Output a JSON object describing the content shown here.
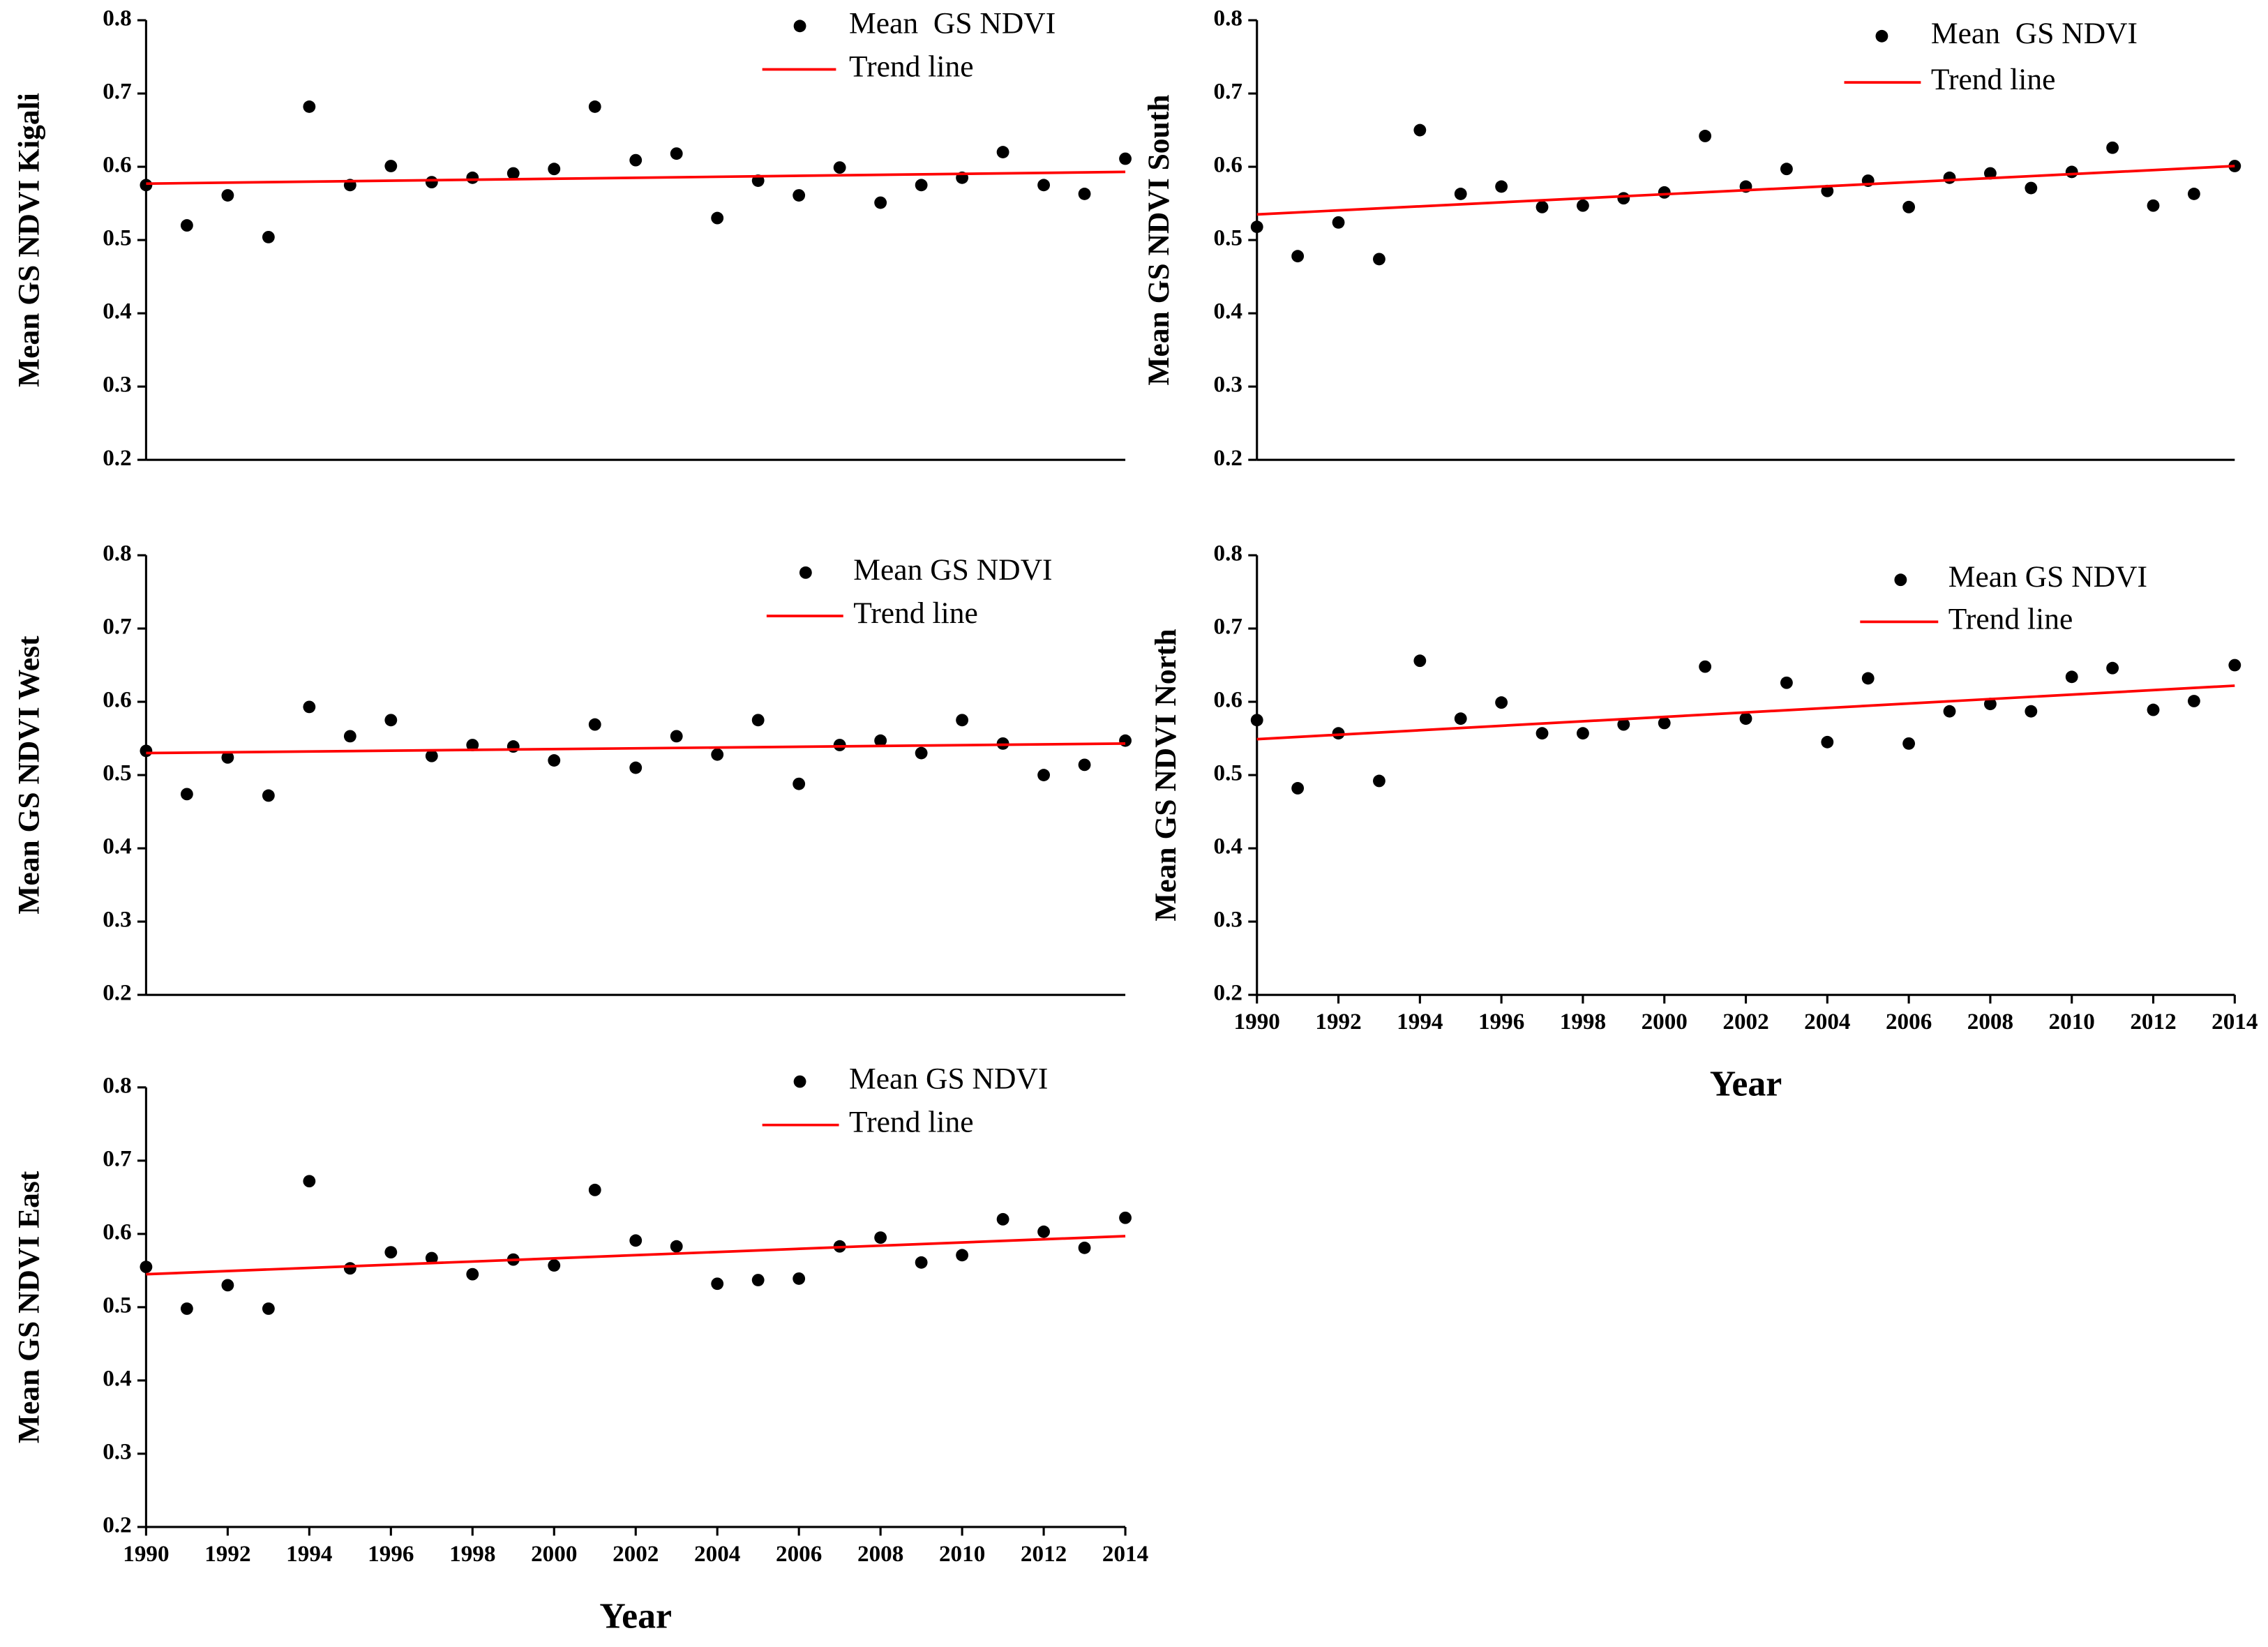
{
  "chart_data": [
    {
      "type": "scatter",
      "ylabel": "Mean GS NDVI Kigali",
      "xlim": [
        1990,
        2014
      ],
      "ylim": [
        0.2,
        0.8
      ],
      "yticks": [
        0.2,
        0.3,
        0.4,
        0.5,
        0.6,
        0.7,
        0.8
      ],
      "series": [
        {
          "name": "Mean  GS NDVI",
          "color": "#000000",
          "kind": "markers",
          "x": [
            1990,
            1991,
            1992,
            1993,
            1994,
            1995,
            1996,
            1997,
            1998,
            1999,
            2000,
            2001,
            2002,
            2003,
            2004,
            2005,
            2006,
            2007,
            2008,
            2009,
            2010,
            2011,
            2012,
            2013,
            2014
          ],
          "values": [
            0.575,
            0.52,
            0.561,
            0.504,
            0.682,
            0.575,
            0.601,
            0.579,
            0.585,
            0.591,
            0.597,
            0.682,
            0.609,
            0.618,
            0.53,
            0.581,
            0.561,
            0.599,
            0.551,
            0.575,
            0.585,
            0.62,
            0.575,
            0.563,
            0.611
          ]
        },
        {
          "name": "Trend line",
          "color": "#ff0000",
          "kind": "line",
          "x": [
            1990,
            2014
          ],
          "values": [
            0.577,
            0.593
          ]
        }
      ]
    },
    {
      "type": "scatter",
      "ylabel": "Mean GS NDVI South",
      "xlim": [
        1990,
        2014
      ],
      "ylim": [
        0.2,
        0.8
      ],
      "yticks": [
        0.2,
        0.3,
        0.4,
        0.5,
        0.6,
        0.7,
        0.8
      ],
      "series": [
        {
          "name": "Mean  GS NDVI",
          "color": "#000000",
          "kind": "markers",
          "x": [
            1990,
            1991,
            1992,
            1993,
            1994,
            1995,
            1996,
            1997,
            1998,
            1999,
            2000,
            2001,
            2002,
            2003,
            2004,
            2005,
            2006,
            2007,
            2008,
            2009,
            2010,
            2011,
            2012,
            2013,
            2014
          ],
          "values": [
            0.518,
            0.478,
            0.524,
            0.474,
            0.65,
            0.563,
            0.573,
            0.545,
            0.547,
            0.557,
            0.565,
            0.642,
            0.573,
            0.597,
            0.567,
            0.581,
            0.545,
            0.585,
            0.591,
            0.571,
            0.593,
            0.626,
            0.547,
            0.563,
            0.601
          ]
        },
        {
          "name": "Trend line",
          "color": "#ff0000",
          "kind": "line",
          "x": [
            1990,
            2014
          ],
          "values": [
            0.535,
            0.601
          ]
        }
      ]
    },
    {
      "type": "scatter",
      "ylabel": "Mean GS NDVI West",
      "xlim": [
        1990,
        2014
      ],
      "ylim": [
        0.2,
        0.8
      ],
      "yticks": [
        0.2,
        0.3,
        0.4,
        0.5,
        0.6,
        0.7,
        0.8
      ],
      "series": [
        {
          "name": "Mean GS NDVI",
          "color": "#000000",
          "kind": "markers",
          "x": [
            1990,
            1991,
            1992,
            1993,
            1994,
            1995,
            1996,
            1997,
            1998,
            1999,
            2000,
            2001,
            2002,
            2003,
            2004,
            2005,
            2006,
            2007,
            2008,
            2009,
            2010,
            2011,
            2012,
            2013,
            2014
          ],
          "values": [
            0.533,
            0.474,
            0.524,
            0.472,
            0.593,
            0.553,
            0.575,
            0.526,
            0.541,
            0.539,
            0.52,
            0.569,
            0.51,
            0.553,
            0.528,
            0.575,
            0.488,
            0.541,
            0.547,
            0.53,
            0.575,
            0.543,
            0.5,
            0.514,
            0.547
          ]
        },
        {
          "name": "Trend line",
          "color": "#ff0000",
          "kind": "line",
          "x": [
            1990,
            2014
          ],
          "values": [
            0.53,
            0.543
          ]
        }
      ]
    },
    {
      "type": "scatter",
      "ylabel": "Mean GS NDVI North",
      "xlabel": "Year",
      "xlim": [
        1990,
        2014
      ],
      "ylim": [
        0.2,
        0.8
      ],
      "yticks": [
        0.2,
        0.3,
        0.4,
        0.5,
        0.6,
        0.7,
        0.8
      ],
      "xticks": [
        1990,
        1992,
        1994,
        1996,
        1998,
        2000,
        2002,
        2004,
        2006,
        2008,
        2010,
        2012,
        2014
      ],
      "series": [
        {
          "name": "Mean GS NDVI",
          "color": "#000000",
          "kind": "markers",
          "x": [
            1990,
            1991,
            1992,
            1993,
            1994,
            1995,
            1996,
            1997,
            1998,
            1999,
            2000,
            2001,
            2002,
            2003,
            2004,
            2005,
            2006,
            2007,
            2008,
            2009,
            2010,
            2011,
            2012,
            2013,
            2014
          ],
          "values": [
            0.575,
            0.482,
            0.557,
            0.492,
            0.656,
            0.577,
            0.599,
            0.557,
            0.557,
            0.569,
            0.571,
            0.648,
            0.577,
            0.626,
            0.545,
            0.632,
            0.543,
            0.587,
            0.597,
            0.587,
            0.634,
            0.646,
            0.589,
            0.601,
            0.65
          ]
        },
        {
          "name": "Trend line",
          "color": "#ff0000",
          "kind": "line",
          "x": [
            1990,
            2014
          ],
          "values": [
            0.549,
            0.622
          ]
        }
      ]
    },
    {
      "type": "scatter",
      "ylabel": "Mean GS NDVI East",
      "xlabel": "Year",
      "xlim": [
        1990,
        2014
      ],
      "ylim": [
        0.2,
        0.8
      ],
      "yticks": [
        0.2,
        0.3,
        0.4,
        0.5,
        0.6,
        0.7,
        0.8
      ],
      "xticks": [
        1990,
        1992,
        1994,
        1996,
        1998,
        2000,
        2002,
        2004,
        2006,
        2008,
        2010,
        2012,
        2014
      ],
      "series": [
        {
          "name": "Mean GS NDVI",
          "color": "#000000",
          "kind": "markers",
          "x": [
            1990,
            1991,
            1992,
            1993,
            1994,
            1995,
            1996,
            1997,
            1998,
            1999,
            2000,
            2001,
            2002,
            2003,
            2004,
            2005,
            2006,
            2007,
            2008,
            2009,
            2010,
            2011,
            2012,
            2013,
            2014
          ],
          "values": [
            0.555,
            0.498,
            0.53,
            0.498,
            0.672,
            0.553,
            0.575,
            0.567,
            0.545,
            0.565,
            0.557,
            0.66,
            0.591,
            0.583,
            0.532,
            0.537,
            0.539,
            0.583,
            0.595,
            0.561,
            0.571,
            0.62,
            0.603,
            0.581,
            0.622
          ]
        },
        {
          "name": "Trend line",
          "color": "#ff0000",
          "kind": "line",
          "x": [
            1990,
            2014
          ],
          "values": [
            0.545,
            0.597
          ]
        }
      ]
    }
  ]
}
